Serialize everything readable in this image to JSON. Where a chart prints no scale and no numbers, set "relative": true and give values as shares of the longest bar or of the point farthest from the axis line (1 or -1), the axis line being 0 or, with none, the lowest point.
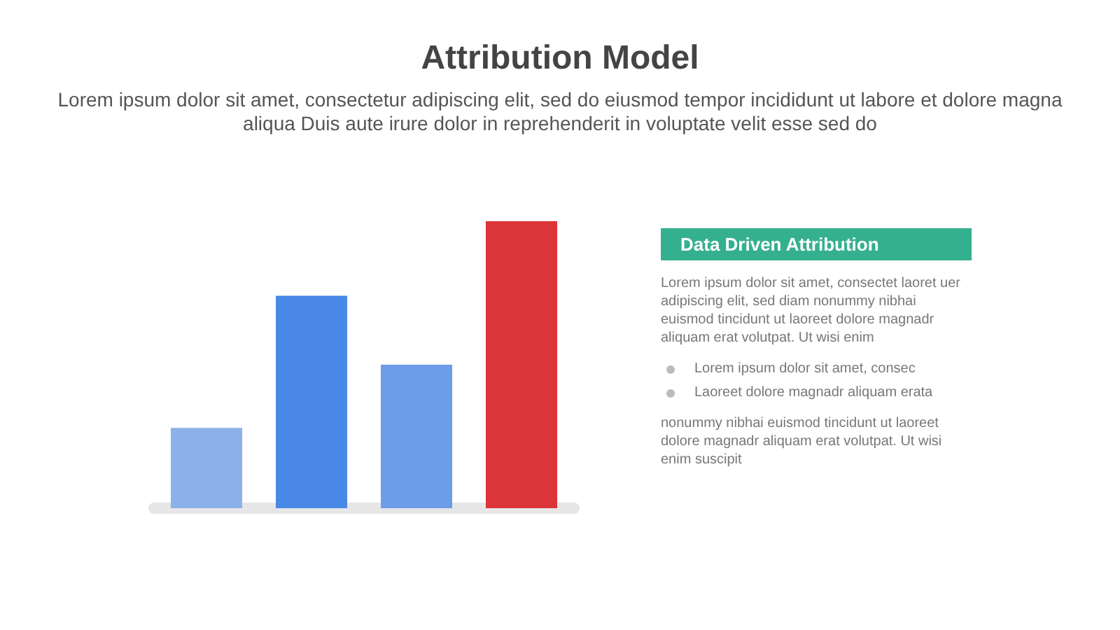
{
  "chart_data": {
    "type": "bar",
    "title": "Attribution Model",
    "subtitle": "Lorem ipsum dolor sit amet, consectetur adipiscing elit, sed do eiusmod tempor incididunt ut labore et dolore magna aliqua Duis aute irure dolor in reprehenderit in voluptate velit esse sed do",
    "categories": [
      null,
      null,
      null,
      null
    ],
    "values": [
      0.28,
      0.74,
      0.5,
      1
    ],
    "colors": [
      "#8cb0ea",
      "#4a88e6",
      "#6b9de8",
      "#db3539"
    ],
    "relative": true,
    "annotations": [
      "Data Driven Attribution",
      "Lorem ipsum dolor sit amet, consectet laoret uer adipiscing elit, sed diam nonummy nibhai euismod tincidunt ut laoreet dolore magnadr aliquam erat volutpat. Ut wisi enim",
      "Lorem ipsum dolor sit amet, consec",
      "Laoreet dolore magnadr aliquam erata",
      "nonummy nibhai euismod tincidunt ut laoreet dolore magnadr aliquam erat volutpat. Ut wisi enim suscipit"
    ]
  }
}
